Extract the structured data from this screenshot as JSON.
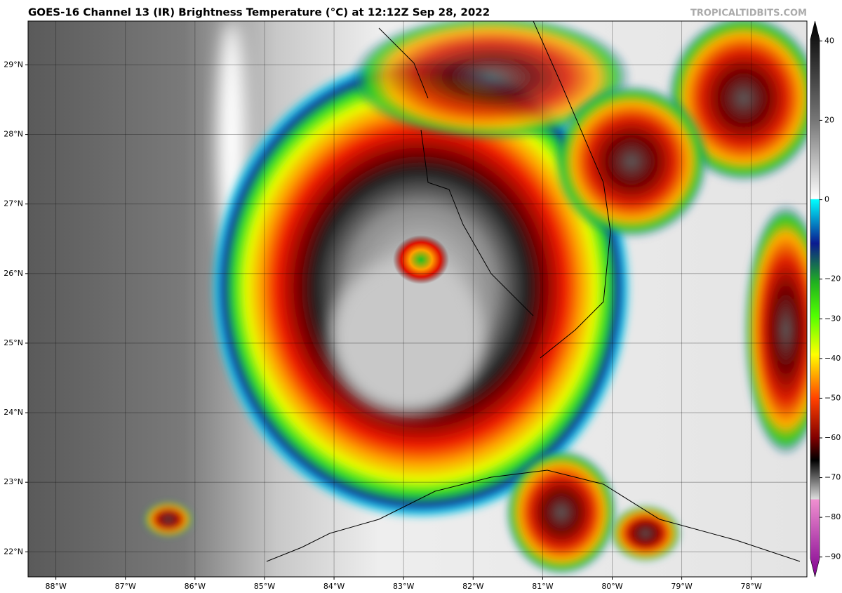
{
  "header": {
    "title": "GOES-16 Channel 13 (IR) Brightness Temperature (°C) at 12:12Z Sep 28, 2022",
    "watermark": "TROPICALTIDBITS.COM"
  },
  "map": {
    "lon_range": [
      -88.4,
      -77.2
    ],
    "lat_range": [
      21.64,
      29.63
    ],
    "lon_ticks": [
      {
        "value": -88,
        "label": "88°W"
      },
      {
        "value": -87,
        "label": "87°W"
      },
      {
        "value": -86,
        "label": "86°W"
      },
      {
        "value": -85,
        "label": "85°W"
      },
      {
        "value": -84,
        "label": "84°W"
      },
      {
        "value": -83,
        "label": "83°W"
      },
      {
        "value": -82,
        "label": "82°W"
      },
      {
        "value": -81,
        "label": "81°W"
      },
      {
        "value": -80,
        "label": "80°W"
      },
      {
        "value": -79,
        "label": "79°W"
      },
      {
        "value": -78,
        "label": "78°W"
      }
    ],
    "lat_ticks": [
      {
        "value": 29,
        "label": "29°N"
      },
      {
        "value": 28,
        "label": "28°N"
      },
      {
        "value": 27,
        "label": "27°N"
      },
      {
        "value": 26,
        "label": "26°N"
      },
      {
        "value": 25,
        "label": "25°N"
      },
      {
        "value": 24,
        "label": "24°N"
      },
      {
        "value": 23,
        "label": "23°N"
      },
      {
        "value": 22,
        "label": "22°N"
      }
    ]
  },
  "colorbar": {
    "range": [
      -95,
      45
    ],
    "ticks": [
      {
        "value": 40,
        "label": "40"
      },
      {
        "value": 20,
        "label": "20"
      },
      {
        "value": 0,
        "label": "0"
      },
      {
        "value": -20,
        "label": "−20"
      },
      {
        "value": -30,
        "label": "−30"
      },
      {
        "value": -40,
        "label": "−40"
      },
      {
        "value": -50,
        "label": "−50"
      },
      {
        "value": -60,
        "label": "−60"
      },
      {
        "value": -70,
        "label": "−70"
      },
      {
        "value": -80,
        "label": "−80"
      },
      {
        "value": -90,
        "label": "−90"
      }
    ]
  }
}
